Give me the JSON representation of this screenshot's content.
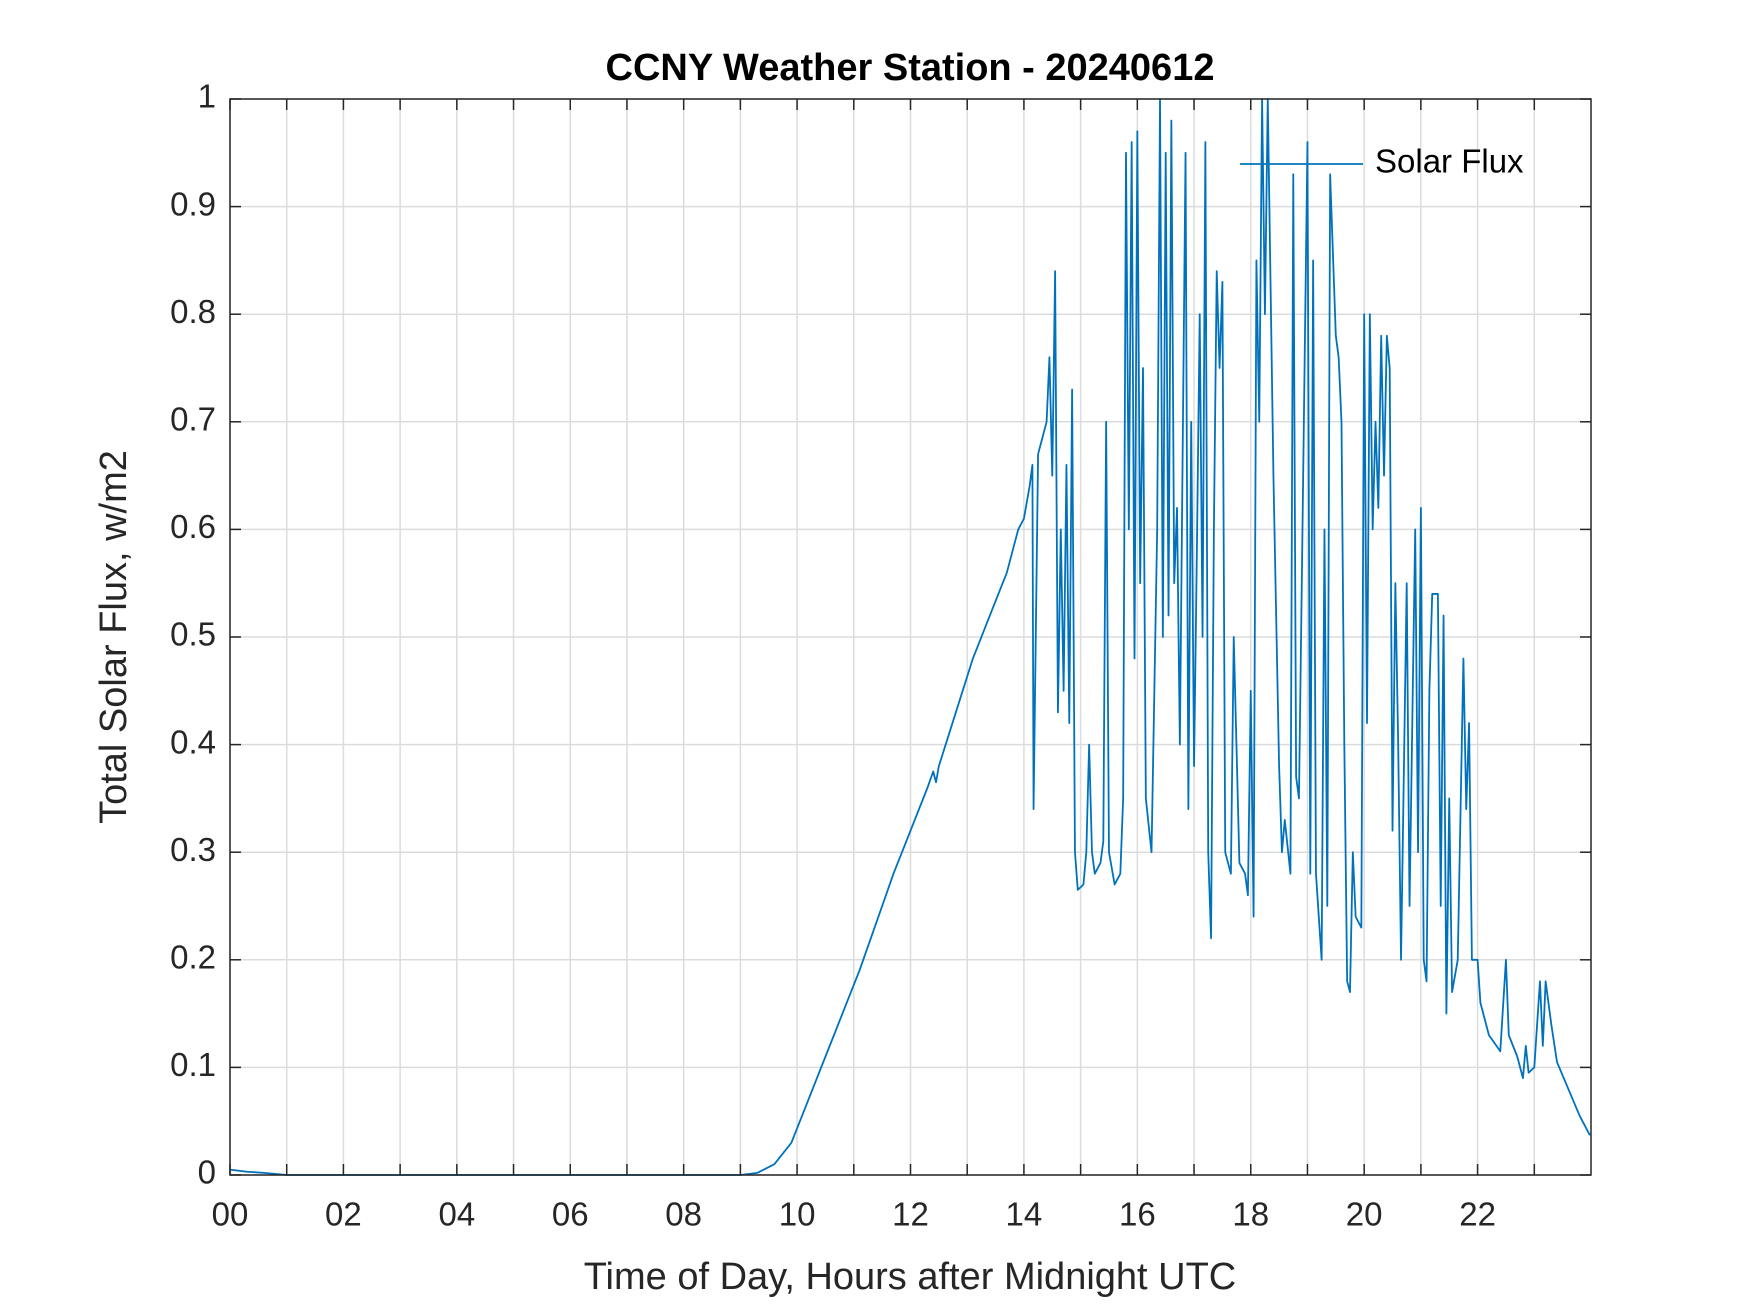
{
  "chart_data": {
    "type": "line",
    "title": "CCNY Weather Station - 20240612",
    "xlabel": "Time of Day, Hours after Midnight UTC",
    "ylabel": "Total Solar Flux, w/m2",
    "x": [
      0,
      0.3,
      0.6,
      1,
      9,
      9.3,
      9.6,
      9.9,
      10.2,
      10.5,
      10.8,
      11.1,
      11.4,
      11.7,
      12.0,
      12.3,
      12.4,
      12.45,
      12.5,
      12.8,
      13.1,
      13.4,
      13.7,
      13.9,
      14.0,
      14.1,
      14.15,
      14.17,
      14.25,
      14.4,
      14.45,
      14.5,
      14.55,
      14.6,
      14.65,
      14.7,
      14.75,
      14.8,
      14.85,
      14.9,
      14.95,
      15.05,
      15.1,
      15.15,
      15.2,
      15.25,
      15.35,
      15.4,
      15.45,
      15.5,
      15.6,
      15.7,
      15.75,
      15.8,
      15.85,
      15.9,
      15.95,
      16.0,
      16.05,
      16.1,
      16.15,
      16.25,
      16.35,
      16.4,
      16.45,
      16.5,
      16.55,
      16.6,
      16.65,
      16.7,
      16.75,
      16.85,
      16.9,
      16.95,
      17.0,
      17.05,
      17.1,
      17.15,
      17.2,
      17.25,
      17.3,
      17.35,
      17.4,
      17.45,
      17.5,
      17.55,
      17.65,
      17.7,
      17.8,
      17.9,
      17.95,
      18.0,
      18.05,
      18.1,
      18.15,
      18.2,
      18.25,
      18.3,
      18.4,
      18.5,
      18.55,
      18.6,
      18.7,
      18.75,
      18.8,
      18.85,
      18.9,
      19.0,
      19.05,
      19.1,
      19.15,
      19.25,
      19.3,
      19.35,
      19.4,
      19.5,
      19.55,
      19.6,
      19.65,
      19.7,
      19.75,
      19.8,
      19.85,
      19.95,
      20.0,
      20.05,
      20.1,
      20.15,
      20.2,
      20.25,
      20.3,
      20.35,
      20.4,
      20.45,
      20.5,
      20.55,
      20.6,
      20.65,
      20.75,
      20.8,
      20.9,
      20.95,
      21.0,
      21.05,
      21.1,
      21.15,
      21.2,
      21.3,
      21.35,
      21.4,
      21.45,
      21.5,
      21.55,
      21.65,
      21.75,
      21.8,
      21.85,
      21.9,
      22.0,
      22.05,
      22.2,
      22.4,
      22.5,
      22.55,
      22.7,
      22.8,
      22.85,
      22.9,
      23.0,
      23.1,
      23.15,
      23.2,
      23.3,
      23.4,
      23.6,
      23.8,
      23.98
    ],
    "series": [
      {
        "name": "Solar Flux",
        "color": "#0072bd",
        "values": [
          0.005,
          0.003,
          0.002,
          0,
          0,
          0.002,
          0.01,
          0.03,
          0.07,
          0.11,
          0.15,
          0.19,
          0.235,
          0.28,
          0.32,
          0.36,
          0.375,
          0.365,
          0.38,
          0.43,
          0.48,
          0.52,
          0.56,
          0.6,
          0.61,
          0.64,
          0.66,
          0.34,
          0.67,
          0.7,
          0.76,
          0.65,
          0.84,
          0.43,
          0.6,
          0.45,
          0.66,
          0.42,
          0.73,
          0.3,
          0.265,
          0.27,
          0.3,
          0.4,
          0.3,
          0.28,
          0.29,
          0.31,
          0.7,
          0.3,
          0.27,
          0.28,
          0.35,
          0.95,
          0.6,
          0.96,
          0.48,
          0.97,
          0.55,
          0.75,
          0.35,
          0.3,
          0.6,
          1.0,
          0.5,
          0.95,
          0.52,
          0.98,
          0.55,
          0.62,
          0.4,
          0.95,
          0.34,
          0.7,
          0.38,
          0.58,
          0.8,
          0.5,
          0.96,
          0.3,
          0.22,
          0.6,
          0.84,
          0.75,
          0.83,
          0.3,
          0.28,
          0.5,
          0.29,
          0.28,
          0.26,
          0.45,
          0.24,
          0.85,
          0.7,
          1.0,
          0.8,
          1.0,
          0.65,
          0.38,
          0.3,
          0.33,
          0.28,
          0.93,
          0.37,
          0.35,
          0.55,
          0.96,
          0.28,
          0.85,
          0.28,
          0.2,
          0.6,
          0.25,
          0.93,
          0.78,
          0.76,
          0.7,
          0.4,
          0.18,
          0.17,
          0.3,
          0.24,
          0.23,
          0.8,
          0.42,
          0.8,
          0.6,
          0.7,
          0.62,
          0.78,
          0.65,
          0.78,
          0.75,
          0.32,
          0.55,
          0.4,
          0.2,
          0.55,
          0.25,
          0.6,
          0.3,
          0.62,
          0.2,
          0.18,
          0.45,
          0.54,
          0.54,
          0.25,
          0.52,
          0.15,
          0.35,
          0.17,
          0.2,
          0.48,
          0.34,
          0.42,
          0.2,
          0.2,
          0.16,
          0.13,
          0.115,
          0.2,
          0.13,
          0.11,
          0.09,
          0.12,
          0.095,
          0.1,
          0.18,
          0.12,
          0.18,
          0.14,
          0.105,
          0.08,
          0.055,
          0.037
        ]
      }
    ],
    "xlim": [
      0,
      24
    ],
    "xticks": [
      {
        "value": 0,
        "label": "00"
      },
      {
        "value": 2,
        "label": "02"
      },
      {
        "value": 4,
        "label": "04"
      },
      {
        "value": 6,
        "label": "06"
      },
      {
        "value": 8,
        "label": "08"
      },
      10,
      12,
      14,
      16,
      18,
      20,
      22
    ],
    "x_minor_ticks": [
      1,
      3,
      5,
      7,
      9,
      11,
      13,
      15,
      17,
      19,
      21,
      23
    ],
    "ylim": [
      0,
      1
    ],
    "yticks": [
      0,
      0.1,
      0.2,
      0.3,
      0.4,
      0.5,
      0.6,
      0.7,
      0.8,
      0.9,
      1
    ],
    "grid": true,
    "legend": "northeast"
  }
}
